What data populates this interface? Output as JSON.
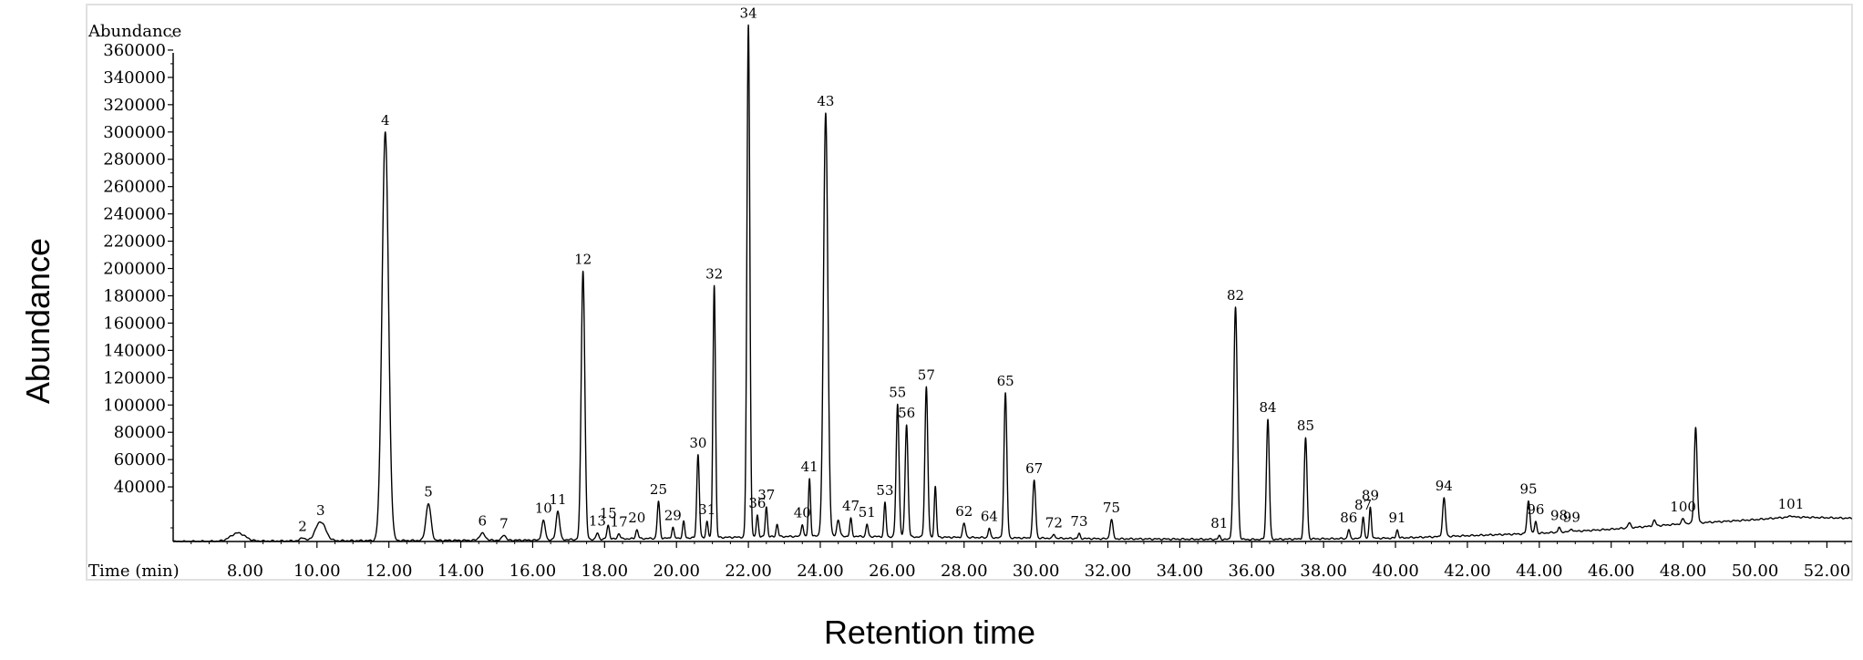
{
  "chart_data": {
    "type": "line",
    "inner_ylabel": "Abundance",
    "inner_xlabel": "Time (min)",
    "outer_ylabel": "Abundance",
    "outer_xlabel": "Retention time",
    "xlim": [
      6.0,
      52.7
    ],
    "ylim": [
      0,
      380000
    ],
    "x_ticks": [
      8,
      10,
      12,
      14,
      16,
      18,
      20,
      22,
      24,
      26,
      28,
      30,
      32,
      34,
      36,
      38,
      40,
      42,
      44,
      46,
      48,
      50,
      52
    ],
    "x_tick_labels": [
      "8.00",
      "10.00",
      "12.00",
      "14.00",
      "16.00",
      "18.00",
      "20.00",
      "22.00",
      "24.00",
      "26.00",
      "28.00",
      "30.00",
      "32.00",
      "34.00",
      "36.00",
      "38.00",
      "40.00",
      "42.00",
      "44.00",
      "46.00",
      "48.00",
      "50.00",
      "52.00"
    ],
    "y_ticks": [
      40000,
      60000,
      80000,
      100000,
      120000,
      140000,
      160000,
      180000,
      200000,
      220000,
      240000,
      260000,
      280000,
      300000,
      320000,
      340000,
      360000
    ],
    "y_tick_labels": [
      "40000",
      "60000",
      "80000",
      "100000",
      "120000",
      "140000",
      "160000",
      "180000",
      "200000",
      "220000",
      "240000",
      "260000",
      "280000",
      "300000",
      "320000",
      "340000",
      "360000"
    ],
    "peaks": [
      {
        "label": "",
        "x": 7.8,
        "y": 6000,
        "w": 0.2
      },
      {
        "label": "2",
        "x": 9.6,
        "y": 2500,
        "w": 0.06
      },
      {
        "label": "3",
        "x": 10.1,
        "y": 14000,
        "w": 0.14
      },
      {
        "label": "4",
        "x": 11.9,
        "y": 299000,
        "w": 0.09
      },
      {
        "label": "5",
        "x": 13.1,
        "y": 27000,
        "w": 0.07
      },
      {
        "label": "6",
        "x": 14.6,
        "y": 5000,
        "w": 0.08
      },
      {
        "label": "7",
        "x": 15.2,
        "y": 4000,
        "w": 0.05
      },
      {
        "label": "10",
        "x": 16.3,
        "y": 14000,
        "w": 0.05
      },
      {
        "label": "11",
        "x": 16.7,
        "y": 21000,
        "w": 0.05
      },
      {
        "label": "12",
        "x": 17.4,
        "y": 197000,
        "w": 0.05
      },
      {
        "label": "13",
        "x": 17.8,
        "y": 4500,
        "w": 0.035
      },
      {
        "label": "15",
        "x": 18.1,
        "y": 10000,
        "w": 0.035
      },
      {
        "label": "17",
        "x": 18.4,
        "y": 4000,
        "w": 0.035
      },
      {
        "label": "20",
        "x": 18.9,
        "y": 6500,
        "w": 0.035
      },
      {
        "label": "25",
        "x": 19.5,
        "y": 27000,
        "w": 0.035
      },
      {
        "label": "29",
        "x": 19.9,
        "y": 8000,
        "w": 0.03
      },
      {
        "label": "",
        "x": 20.2,
        "y": 12000,
        "w": 0.03
      },
      {
        "label": "30",
        "x": 20.6,
        "y": 61000,
        "w": 0.035
      },
      {
        "label": "31",
        "x": 20.85,
        "y": 12000,
        "w": 0.03
      },
      {
        "label": "32",
        "x": 21.05,
        "y": 185000,
        "w": 0.035
      },
      {
        "label": "34",
        "x": 22.0,
        "y": 375000,
        "w": 0.04
      },
      {
        "label": "36",
        "x": 22.25,
        "y": 16000,
        "w": 0.03
      },
      {
        "label": "37",
        "x": 22.5,
        "y": 22000,
        "w": 0.03
      },
      {
        "label": "",
        "x": 22.8,
        "y": 9000,
        "w": 0.03
      },
      {
        "label": "40",
        "x": 23.5,
        "y": 9000,
        "w": 0.03
      },
      {
        "label": "41",
        "x": 23.7,
        "y": 42000,
        "w": 0.03
      },
      {
        "label": "43",
        "x": 24.15,
        "y": 310000,
        "w": 0.06
      },
      {
        "label": "",
        "x": 24.5,
        "y": 12000,
        "w": 0.04
      },
      {
        "label": "47",
        "x": 24.85,
        "y": 13000,
        "w": 0.03
      },
      {
        "label": "51",
        "x": 25.3,
        "y": 9000,
        "w": 0.03
      },
      {
        "label": "53",
        "x": 25.8,
        "y": 25000,
        "w": 0.03
      },
      {
        "label": "55",
        "x": 26.15,
        "y": 97000,
        "w": 0.04
      },
      {
        "label": "56",
        "x": 26.4,
        "y": 82000,
        "w": 0.04
      },
      {
        "label": "57",
        "x": 26.95,
        "y": 110000,
        "w": 0.04
      },
      {
        "label": "",
        "x": 27.2,
        "y": 37000,
        "w": 0.03
      },
      {
        "label": "62",
        "x": 28.0,
        "y": 10000,
        "w": 0.04
      },
      {
        "label": "64",
        "x": 28.7,
        "y": 7000,
        "w": 0.03
      },
      {
        "label": "65",
        "x": 29.15,
        "y": 106000,
        "w": 0.04
      },
      {
        "label": "67",
        "x": 29.95,
        "y": 42000,
        "w": 0.04
      },
      {
        "label": "72",
        "x": 30.5,
        "y": 3000,
        "w": 0.03
      },
      {
        "label": "73",
        "x": 31.2,
        "y": 3500,
        "w": 0.03
      },
      {
        "label": "75",
        "x": 32.1,
        "y": 14000,
        "w": 0.04
      },
      {
        "label": "81",
        "x": 35.1,
        "y": 2500,
        "w": 0.03
      },
      {
        "label": "82",
        "x": 35.55,
        "y": 170000,
        "w": 0.05
      },
      {
        "label": "84",
        "x": 36.45,
        "y": 88000,
        "w": 0.04
      },
      {
        "label": "85",
        "x": 37.5,
        "y": 74000,
        "w": 0.04
      },
      {
        "label": "86",
        "x": 38.7,
        "y": 6500,
        "w": 0.03
      },
      {
        "label": "87",
        "x": 39.1,
        "y": 16000,
        "w": 0.03
      },
      {
        "label": "89",
        "x": 39.3,
        "y": 23000,
        "w": 0.03
      },
      {
        "label": "91",
        "x": 40.05,
        "y": 6000,
        "w": 0.03
      },
      {
        "label": "94",
        "x": 41.35,
        "y": 28000,
        "w": 0.04
      },
      {
        "label": "95",
        "x": 43.7,
        "y": 24000,
        "w": 0.04
      },
      {
        "label": "96",
        "x": 43.9,
        "y": 9000,
        "w": 0.03
      },
      {
        "label": "98",
        "x": 44.55,
        "y": 3500,
        "w": 0.03
      },
      {
        "label": "99",
        "x": 44.9,
        "y": 2000,
        "w": 0.03
      },
      {
        "label": "",
        "x": 46.5,
        "y": 3500,
        "w": 0.04
      },
      {
        "label": "",
        "x": 47.2,
        "y": 4000,
        "w": 0.04
      },
      {
        "label": "100",
        "x": 48.0,
        "y": 3500,
        "w": 0.04
      },
      {
        "label": "",
        "x": 48.35,
        "y": 70000,
        "w": 0.04
      },
      {
        "label": "101",
        "x": 51.0,
        "y": 1000,
        "w": 0.04
      }
    ],
    "baseline": [
      [
        6.0,
        0
      ],
      [
        10.0,
        500
      ],
      [
        16.0,
        1000
      ],
      [
        20.0,
        2500
      ],
      [
        24.0,
        4000
      ],
      [
        28.0,
        3000
      ],
      [
        32.0,
        2000
      ],
      [
        36.0,
        1500
      ],
      [
        40.0,
        2500
      ],
      [
        44.0,
        6000
      ],
      [
        46.0,
        9000
      ],
      [
        48.0,
        13000
      ],
      [
        50.0,
        16000
      ],
      [
        51.0,
        18000
      ],
      [
        52.7,
        17000
      ]
    ]
  }
}
